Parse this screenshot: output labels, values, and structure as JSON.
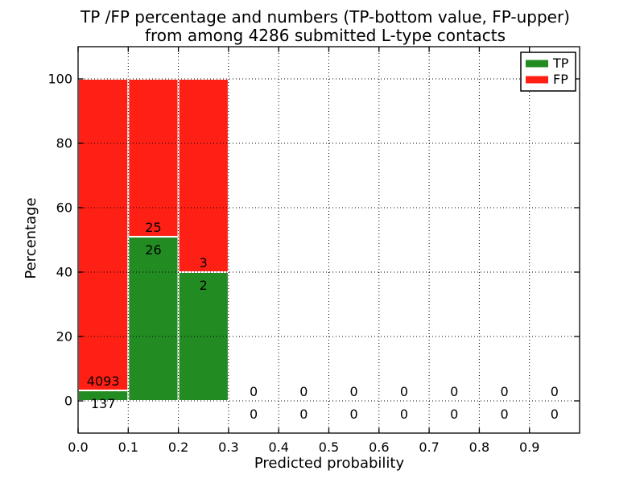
{
  "chart_data": {
    "type": "bar",
    "stacked": true,
    "title_line1": "TP /FP percentage and numbers (TP-bottom value, FP-upper)",
    "title_line2": "from among 4286 submitted L-type contacts",
    "xlabel": "Predicted probability",
    "ylabel": "Percentage",
    "total_submitted": 4286,
    "bin_width": 0.1,
    "bin_starts": [
      0.0,
      0.1,
      0.2,
      0.3,
      0.4,
      0.5,
      0.6,
      0.7,
      0.8,
      0.9
    ],
    "series": [
      {
        "name": "TP",
        "color": "#228b22",
        "counts": [
          137,
          26,
          2,
          0,
          0,
          0,
          0,
          0,
          0,
          0
        ]
      },
      {
        "name": "FP",
        "color": "#ff2015",
        "counts": [
          4093,
          25,
          3,
          0,
          0,
          0,
          0,
          0,
          0,
          0
        ]
      }
    ],
    "tp_percent_by_bin": [
      3.2,
      51.0,
      40.0,
      0,
      0,
      0,
      0,
      0,
      0,
      0
    ],
    "fp_percent_by_bin": [
      96.8,
      49.0,
      60.0,
      0,
      0,
      0,
      0,
      0,
      0,
      0
    ],
    "x_ticks": [
      "0.0",
      "0.1",
      "0.2",
      "0.3",
      "0.4",
      "0.5",
      "0.6",
      "0.7",
      "0.8",
      "0.9"
    ],
    "y_ticks": [
      0,
      20,
      40,
      60,
      80,
      100
    ],
    "xlim": [
      0.0,
      1.0
    ],
    "ylim": [
      -10,
      110
    ],
    "grid": "dotted",
    "grid_color": "#000000",
    "bar_edge_color": "#ffffff",
    "legend": {
      "position": "upper right",
      "entries": [
        "TP",
        "FP"
      ]
    }
  }
}
